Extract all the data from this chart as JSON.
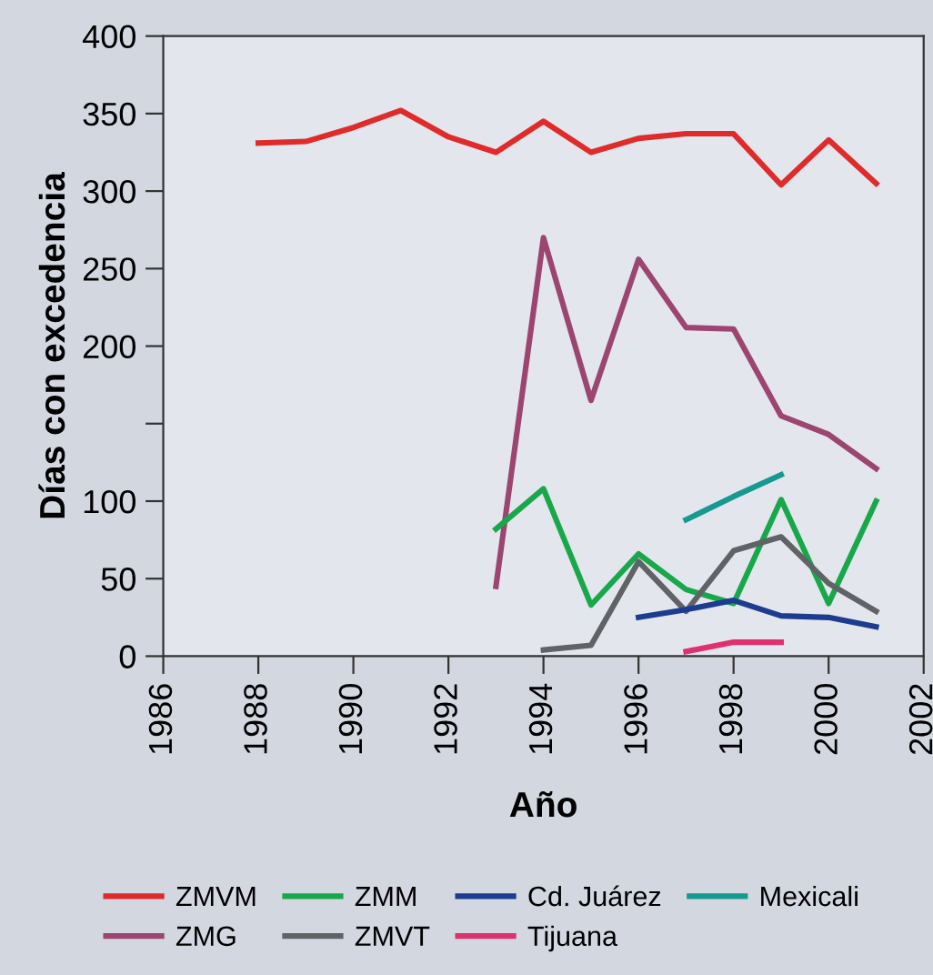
{
  "chart_data": {
    "type": "line",
    "xlabel": "Año",
    "ylabel": "Días con excedencia",
    "xlim": [
      1986,
      2002
    ],
    "xticks": [
      1986,
      1988,
      1990,
      1992,
      1994,
      1996,
      1998,
      2000,
      2002
    ],
    "ylim": [
      0,
      400
    ],
    "yticks": [
      0,
      50,
      100,
      {
        "value": 150,
        "label": null
      },
      200,
      250,
      300,
      350,
      400
    ],
    "grid": false,
    "legend": "bottom",
    "marker": "none",
    "line_style": "solid",
    "series": [
      {
        "name": "ZMVM",
        "color": "#e02b2b",
        "x": [
          1988,
          1989,
          1990,
          1991,
          1992,
          1993,
          1994,
          1995,
          1996,
          1997,
          1998,
          1999,
          2000,
          2001
        ],
        "values": [
          331,
          332,
          341,
          352,
          335,
          325,
          345,
          325,
          334,
          337,
          337,
          304,
          333,
          305
        ]
      },
      {
        "name": "ZMG",
        "color": "#9b4570",
        "x": [
          1993,
          1994,
          1995,
          1996,
          1997,
          1998,
          1999,
          2000,
          2001
        ],
        "values": [
          45,
          270,
          165,
          256,
          212,
          211,
          155,
          143,
          121
        ]
      },
      {
        "name": "ZMM",
        "color": "#18a84a",
        "x": [
          1993,
          1994,
          1995,
          1996,
          1997,
          1998,
          1999,
          2000,
          2001
        ],
        "values": [
          82,
          108,
          33,
          66,
          43,
          34,
          101,
          34,
          100
        ]
      },
      {
        "name": "ZMVT",
        "color": "#5f6366",
        "x": [
          1994,
          1995,
          1996,
          1997,
          1998,
          1999,
          2000,
          2001
        ],
        "values": [
          4,
          7,
          61,
          29,
          68,
          77,
          47,
          29
        ]
      },
      {
        "name": "Cd. Juárez",
        "color": "#1c3d8f",
        "x": [
          1996,
          1997,
          1998,
          1999,
          2000,
          2001
        ],
        "values": [
          25,
          30,
          36,
          26,
          25,
          19
        ]
      },
      {
        "name": "Tijuana",
        "color": "#e0306e",
        "x": [
          1997,
          1998,
          1999
        ],
        "values": [
          3,
          9,
          9
        ]
      },
      {
        "name": "Mexicali",
        "color": "#16998f",
        "x": [
          1997,
          1998,
          1999
        ],
        "values": [
          88,
          103,
          117
        ]
      }
    ]
  }
}
